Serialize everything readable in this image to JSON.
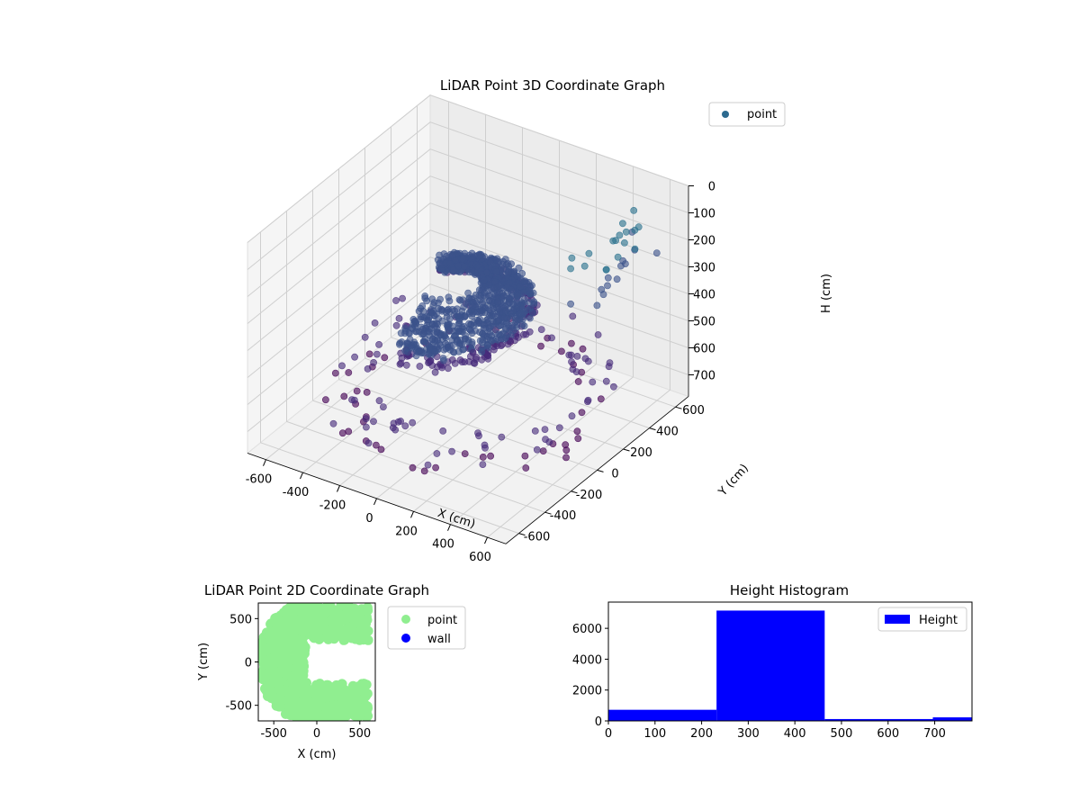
{
  "chart_data": [
    {
      "type": "scatter",
      "projection": "3d",
      "title": "LiDAR Point 3D Coordinate Graph",
      "xlabel": "X (cm)",
      "ylabel": "Y (cm)",
      "zlabel": "H (cm)",
      "xlim": [
        -700,
        700
      ],
      "ylim": [
        -700,
        700
      ],
      "zlim": [
        0,
        780
      ],
      "z_inverted": true,
      "xticks": [
        -600,
        -400,
        -200,
        0,
        200,
        400,
        600
      ],
      "yticks": [
        -600,
        -400,
        -200,
        0,
        200,
        400,
        600
      ],
      "zticks": [
        0,
        100,
        200,
        300,
        400,
        500,
        600,
        700
      ],
      "grid": true,
      "legend": {
        "position": "top-right",
        "entries": [
          {
            "label": "point",
            "color": "#2c6a8f"
          }
        ]
      },
      "colormap": "viridis",
      "clusters": [
        {
          "shape": "dome",
          "center": [
            -150,
            50
          ],
          "radius": 420,
          "h_range": [
            150,
            420
          ],
          "count": 1100
        },
        {
          "shape": "ring",
          "radius_range": [
            450,
            650
          ],
          "h_range": [
            560,
            720
          ],
          "count": 120
        },
        {
          "shape": "far-points",
          "radius_range": [
            500,
            700
          ],
          "h_range": [
            0,
            250
          ],
          "count": 30
        }
      ]
    },
    {
      "type": "scatter",
      "title": "LiDAR Point 2D Coordinate Graph",
      "xlabel": "X (cm)",
      "ylabel": "Y (cm)",
      "xlim": [
        -680,
        680
      ],
      "ylim": [
        -680,
        680
      ],
      "xticks": [
        -500,
        0,
        500
      ],
      "yticks": [
        -500,
        0,
        500
      ],
      "legend": {
        "position": "right",
        "entries": [
          {
            "label": "point",
            "color": "#90ee90"
          },
          {
            "label": "wall",
            "color": "#0000ff"
          }
        ]
      },
      "series": [
        {
          "name": "point",
          "color": "#90ee90",
          "shape": "half-disk",
          "center": [
            -150,
            0
          ],
          "radius": 660
        },
        {
          "name": "wall",
          "color": "#0000ff",
          "points": []
        }
      ]
    },
    {
      "type": "bar",
      "subtype": "histogram",
      "title": "Height Histogram",
      "xlim": [
        0,
        780
      ],
      "ylim": [
        0,
        7700
      ],
      "xticks": [
        0,
        100,
        200,
        300,
        400,
        500,
        600,
        700
      ],
      "yticks": [
        0,
        2000,
        4000,
        6000
      ],
      "legend": {
        "position": "top-right",
        "entries": [
          {
            "label": "Height",
            "color": "#0000ff"
          }
        ]
      },
      "bins": [
        {
          "x0": 0,
          "x1": 232,
          "count": 720
        },
        {
          "x0": 232,
          "x1": 464,
          "count": 7150
        },
        {
          "x0": 464,
          "x1": 696,
          "count": 120
        },
        {
          "x0": 696,
          "x1": 780,
          "count": 230
        }
      ],
      "color": "#0000ff"
    }
  ]
}
